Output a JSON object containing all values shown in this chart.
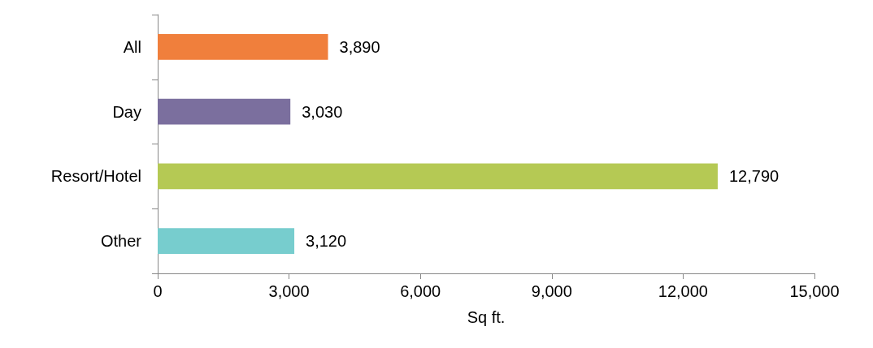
{
  "chart_data": {
    "type": "bar",
    "orientation": "horizontal",
    "xlabel": "Sq ft.",
    "categories": [
      "All",
      "Day",
      "Resort/Hotel",
      "Other"
    ],
    "values": [
      3890,
      3030,
      12790,
      3120
    ],
    "value_labels": [
      "3,890",
      "3,030",
      "12,790",
      "3,120"
    ],
    "colors": [
      "#f07f3c",
      "#7b6f9e",
      "#b5c954",
      "#77cdce"
    ],
    "xlim": [
      0,
      15000
    ],
    "xticks": [
      0,
      {
        "value": 3000,
        "label": "3,000"
      },
      {
        "value": 6000,
        "label": "6,000"
      },
      {
        "value": 9000,
        "label": "9,000"
      },
      {
        "value": 12000,
        "label": "12,000"
      },
      {
        "value": 15000,
        "label": "15,000"
      }
    ],
    "grid": false
  }
}
